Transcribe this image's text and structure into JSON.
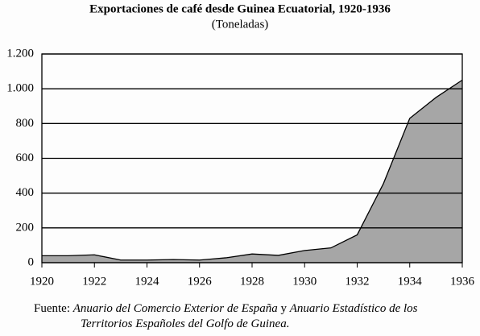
{
  "chart_data": {
    "type": "area",
    "title": "Exportaciones de café desde Guinea Ecuatorial, 1920-1936",
    "subtitle": "(Toneladas)",
    "x": [
      1920,
      1921,
      1922,
      1923,
      1924,
      1925,
      1926,
      1927,
      1928,
      1929,
      1930,
      1931,
      1932,
      1933,
      1934,
      1935,
      1936
    ],
    "values": [
      40,
      40,
      45,
      15,
      15,
      18,
      15,
      28,
      50,
      42,
      70,
      85,
      160,
      455,
      830,
      950,
      1050
    ],
    "color": "#a6a6a6",
    "xlim": [
      1920,
      1936
    ],
    "xticks": [
      1920,
      1922,
      1924,
      1926,
      1928,
      1930,
      1932,
      1934,
      1936
    ],
    "ylim": [
      0,
      1200
    ],
    "yticks": [
      0,
      200,
      400,
      600,
      800,
      {
        "value": 1000,
        "label": "1.000"
      },
      {
        "value": 1200,
        "label": "1.200"
      }
    ],
    "grid": true,
    "source": [
      "Fuente:",
      "Anuario del Comercio Exterior de España",
      "y",
      "Anuario Estadístico de los Territorios Españoles del Golfo de Guinea."
    ]
  }
}
